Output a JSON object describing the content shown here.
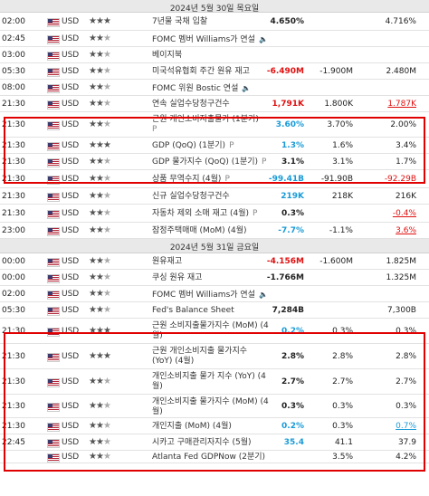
{
  "currency": "USD",
  "speaker_glyph": "🔈",
  "rows": [
    {
      "type": "date",
      "label": "2024년 5월 30일 목요일"
    },
    {
      "time": "02:00",
      "stars": 3,
      "event": "7년물 국채 입찰",
      "actual": "4.650%",
      "forecast": "",
      "previous": "4.716%"
    },
    {
      "time": "02:45",
      "stars": 2,
      "event": "FOMC 멤버 Williams가 연설",
      "speech": true,
      "actual": "",
      "forecast": "",
      "previous": ""
    },
    {
      "time": "03:00",
      "stars": 2,
      "event": "베이지북",
      "actual": "",
      "forecast": "",
      "previous": ""
    },
    {
      "time": "05:30",
      "stars": 2,
      "event": "미국석유협회 주간 원유 재고",
      "actual": "-6.490M",
      "actual_color": "red",
      "forecast": "-1.900M",
      "previous": "2.480M"
    },
    {
      "time": "08:00",
      "stars": 2,
      "event": "FOMC 위원 Bostic 연설",
      "speech": true,
      "actual": "",
      "forecast": "",
      "previous": ""
    },
    {
      "time": "21:30",
      "stars": 2,
      "event": "연속 실업수당청구건수",
      "actual": "1,791K",
      "actual_color": "red",
      "forecast": "1.800K",
      "previous": "1.787K",
      "previous_color": "red"
    },
    {
      "time": "21:30",
      "stars": 2,
      "event": "근원 개인소비지출물가 (1분기)",
      "event2": "P",
      "actual": "3.60%",
      "actual_color": "green",
      "forecast": "3.70%",
      "previous": "2.00%"
    },
    {
      "time": "21:30",
      "stars": 3,
      "event": "GDP (QoQ) (1분기)",
      "prelim": "P",
      "actual": "1.3%",
      "actual_color": "green",
      "forecast": "1.6%",
      "previous": "3.4%"
    },
    {
      "time": "21:30",
      "stars": 2,
      "event": "GDP 물가지수 (QoQ) (1분기)",
      "prelim": "P",
      "actual": "3.1%",
      "forecast": "3.1%",
      "previous": "1.7%"
    },
    {
      "time": "21:30",
      "stars": 2,
      "event": "상품 무역수지 (4월)",
      "prelim": "P",
      "actual": "-99.41B",
      "actual_color": "green",
      "forecast": "-91.90B",
      "previous": "-92.29B",
      "previous_color": "red"
    },
    {
      "time": "21:30",
      "stars": 2,
      "event": "신규 실업수당청구건수",
      "actual": "219K",
      "actual_color": "green",
      "forecast": "218K",
      "previous": "216K"
    },
    {
      "time": "21:30",
      "stars": 2,
      "event": "자동차 제외 소매 재고 (4월)",
      "prelim": "P",
      "actual": "0.3%",
      "forecast": "",
      "previous": "-0.4%",
      "previous_color": "red"
    },
    {
      "time": "23:00",
      "stars": 2,
      "event": "잠정주택매매 (MoM) (4월)",
      "actual": "-7.7%",
      "actual_color": "green",
      "forecast": "-1.1%",
      "previous": "3.6%",
      "previous_color": "red"
    },
    {
      "type": "date",
      "label": "2024년 5월 31일 금요일"
    },
    {
      "time": "00:00",
      "stars": 2,
      "event": "원유재고",
      "actual": "-4.156M",
      "actual_color": "red",
      "forecast": "-1.600M",
      "previous": "1.825M"
    },
    {
      "time": "00:00",
      "stars": 2,
      "event": "쿠싱 원유 재고",
      "actual": "-1.766M",
      "forecast": "",
      "previous": "1.325M"
    },
    {
      "time": "02:00",
      "stars": 2,
      "event": "FOMC 멤버 Williams가 연설",
      "speech": true,
      "actual": "",
      "forecast": "",
      "previous": ""
    },
    {
      "time": "05:30",
      "stars": 2,
      "event": "Fed's Balance Sheet",
      "actual": "7,284B",
      "forecast": "",
      "previous": "7,300B"
    },
    {
      "time": "21:30",
      "stars": 3,
      "event": "근원 소비지출물가지수 (MoM) (4",
      "event2": "월)",
      "actual": "0.2%",
      "actual_color": "green",
      "forecast": "0.3%",
      "previous": "0.3%"
    },
    {
      "time": "21:30",
      "stars": 3,
      "event": "근원 개인소비지출 물가지수",
      "event2": "(YoY) (4월)",
      "actual": "2.8%",
      "forecast": "2.8%",
      "previous": "2.8%"
    },
    {
      "time": "21:30",
      "stars": 2,
      "event": "개인소비지출 물가 지수 (YoY) (4",
      "event2": "월)",
      "actual": "2.7%",
      "forecast": "2.7%",
      "previous": "2.7%"
    },
    {
      "time": "21:30",
      "stars": 2,
      "event": "개인소비지출 물가지수 (MoM) (4",
      "event2": "월)",
      "actual": "0.3%",
      "forecast": "0.3%",
      "previous": "0.3%"
    },
    {
      "time": "21:30",
      "stars": 2,
      "event": "개인지출 (MoM) (4월)",
      "actual": "0.2%",
      "actual_color": "green",
      "forecast": "0.3%",
      "previous": "0.7%",
      "previous_color": "green"
    },
    {
      "time": "22:45",
      "stars": 2,
      "event": "시카고 구매관리자지수 (5월)",
      "actual": "35.4",
      "actual_color": "green",
      "forecast": "41.1",
      "previous": "37.9"
    },
    {
      "time": "",
      "stars": 2,
      "event": "Atlanta Fed GDPNow (2분기)",
      "actual": "",
      "forecast": "3.5%",
      "previous": "4.2%"
    }
  ]
}
